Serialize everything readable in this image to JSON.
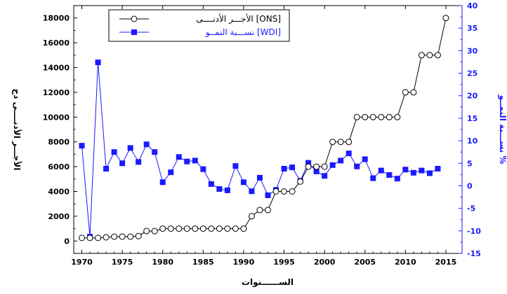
{
  "chart_data": {
    "type": "line",
    "xlabel": "الســــــنوات",
    "ylabel_left": "الأجـــر الأدنــــى دج",
    "ylabel_right": "نســـبة النمــو %",
    "xlim": [
      1969,
      2017
    ],
    "ylim_left": [
      -1000,
      19000
    ],
    "ylim_right": [
      -15,
      40
    ],
    "xticks": [
      1970,
      1975,
      1980,
      1985,
      1990,
      1995,
      2000,
      2005,
      2010,
      2015
    ],
    "yticks_left": [
      0,
      2000,
      4000,
      6000,
      8000,
      10000,
      12000,
      14000,
      16000,
      18000
    ],
    "yticks_right": [
      -15,
      -10,
      -5,
      0,
      5,
      10,
      15,
      20,
      25,
      30,
      35,
      40
    ],
    "legend_position": "top-left",
    "colors": {
      "ons": "#000000",
      "wdi": "#1a1aff"
    },
    "series": [
      {
        "name": "الأجـــر الأدنــــى [ONS]",
        "axis": "left",
        "marker": "open-circle",
        "x": [
          1970,
          1971,
          1972,
          1973,
          1974,
          1975,
          1976,
          1977,
          1978,
          1979,
          1980,
          1981,
          1982,
          1983,
          1984,
          1985,
          1986,
          1987,
          1988,
          1989,
          1990,
          1991,
          1992,
          1993,
          1994,
          1995,
          1996,
          1997,
          1998,
          1999,
          2000,
          2001,
          2002,
          2003,
          2004,
          2005,
          2006,
          2007,
          2008,
          2009,
          2010,
          2011,
          2012,
          2013,
          2014,
          2015
        ],
        "values": [
          250,
          250,
          250,
          300,
          350,
          350,
          350,
          400,
          800,
          800,
          1000,
          1000,
          1000,
          1000,
          1000,
          1000,
          1000,
          1000,
          1000,
          1000,
          1000,
          2000,
          2500,
          2500,
          4000,
          4000,
          4000,
          4800,
          6000,
          6000,
          6000,
          8000,
          8000,
          8000,
          10000,
          10000,
          10000,
          10000,
          10000,
          10000,
          12000,
          12000,
          15000,
          15000,
          15000,
          18000
        ]
      },
      {
        "name": "نســـبة النمــو [WDI]",
        "axis": "right",
        "marker": "filled-square",
        "x": [
          1970,
          1971,
          1972,
          1973,
          1974,
          1975,
          1976,
          1977,
          1978,
          1979,
          1980,
          1981,
          1982,
          1983,
          1984,
          1985,
          1986,
          1987,
          1988,
          1989,
          1990,
          1991,
          1992,
          1993,
          1994,
          1995,
          1996,
          1997,
          1998,
          1999,
          2000,
          2001,
          2002,
          2003,
          2004,
          2005,
          2006,
          2007,
          2008,
          2009,
          2010,
          2011,
          2012,
          2013,
          2014
        ],
        "values": [
          8.9,
          -11.3,
          27.4,
          3.8,
          7.5,
          5.0,
          8.4,
          5.3,
          9.2,
          7.5,
          0.8,
          3.0,
          6.4,
          5.4,
          5.6,
          3.7,
          0.4,
          -0.7,
          -1.0,
          4.4,
          0.8,
          -1.2,
          1.8,
          -2.1,
          -0.9,
          3.8,
          4.1,
          1.1,
          5.1,
          3.2,
          2.2,
          4.6,
          5.6,
          7.2,
          4.3,
          5.9,
          1.7,
          3.4,
          2.4,
          1.6,
          3.6,
          2.9,
          3.4,
          2.8,
          3.8
        ]
      }
    ]
  }
}
